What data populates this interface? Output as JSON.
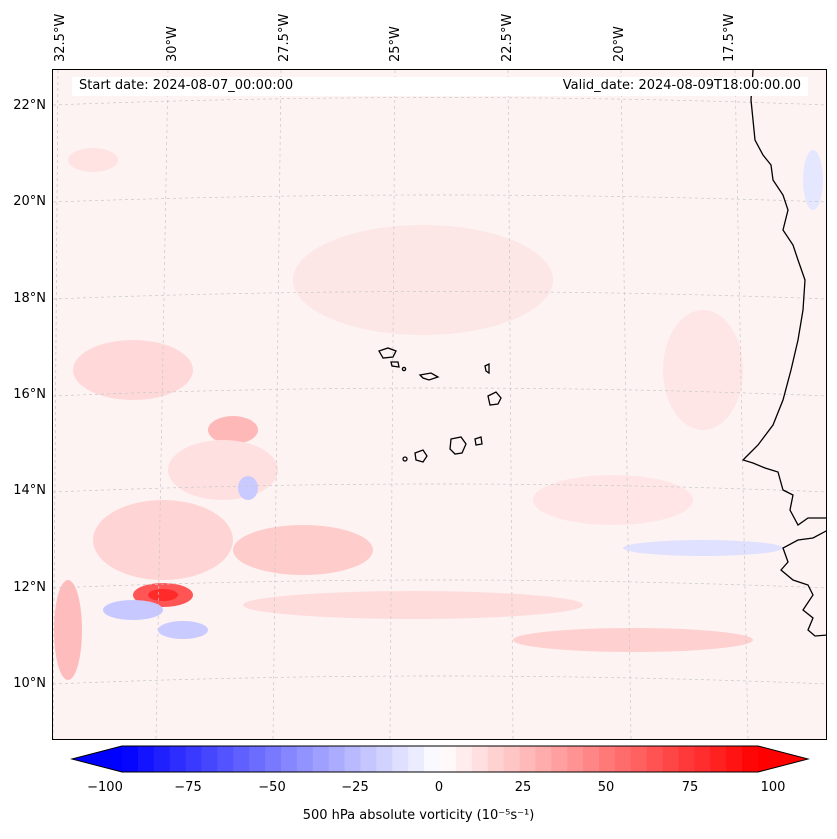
{
  "map": {
    "start_date_label": "Start date: 2024-08-07_00:00:00",
    "valid_date_label": "Valid_date: 2024-08-09T18:00:00.00",
    "longitude_labels": [
      "32.5°W",
      "30°W",
      "27.5°W",
      "25°W",
      "22.5°W",
      "20°W",
      "17.5°W"
    ],
    "latitude_labels": [
      "22°N",
      "20°N",
      "18°N",
      "16°N",
      "14°N",
      "12°N",
      "10°N"
    ],
    "extent": {
      "lon_min_deg_west": 33.0,
      "lon_max_deg_west": 16.0,
      "lat_min": 9.0,
      "lat_max": 22.8
    }
  },
  "colorbar": {
    "label": "500 hPa absolute vorticity (10⁻⁵s⁻¹)",
    "ticks": [
      "−100",
      "−75",
      "−50",
      "−25",
      "0",
      "25",
      "50",
      "75",
      "100"
    ],
    "min": -100,
    "max": 100,
    "negative_color": "#0000ff",
    "positive_color": "#ff0000"
  },
  "colors": {
    "background_field": "#fdf3f3",
    "coastline": "#000000",
    "gridline": "#cccccc"
  }
}
